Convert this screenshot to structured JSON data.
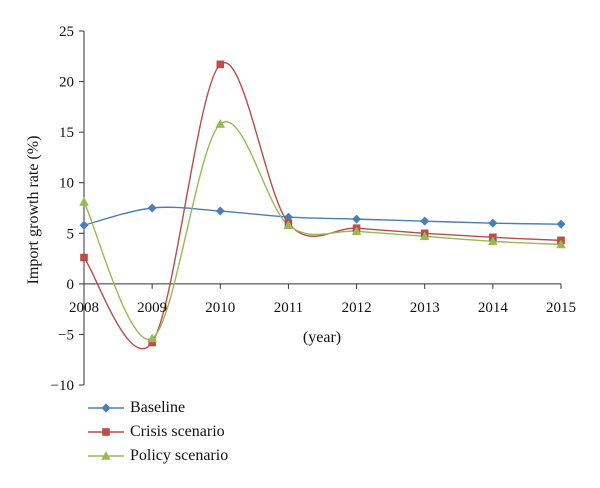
{
  "chart_data": {
    "type": "line",
    "x": [
      2008,
      2009,
      2010,
      2011,
      2012,
      2013,
      2014,
      2015
    ],
    "xlabel": "(year)",
    "ylabel": "Import growth rate (%)",
    "ylim": [
      -10,
      25
    ],
    "yticks": [
      -10,
      -5,
      0,
      5,
      10,
      15,
      20,
      25
    ],
    "grid": false,
    "legend_position": "bottom-left",
    "series": [
      {
        "name": "Baseline",
        "color": "#4a7ebb",
        "marker": "diamond",
        "values": [
          5.8,
          7.5,
          7.2,
          6.6,
          6.4,
          6.2,
          6.0,
          5.9
        ]
      },
      {
        "name": "Crisis scenario",
        "color": "#be4b48",
        "marker": "square",
        "values": [
          2.6,
          -5.8,
          21.7,
          6.0,
          5.5,
          5.0,
          4.6,
          4.3
        ]
      },
      {
        "name": "Policy scenario",
        "color": "#98b954",
        "marker": "triangle",
        "values": [
          8.1,
          -5.4,
          15.8,
          5.8,
          5.2,
          4.7,
          4.2,
          3.9
        ]
      }
    ]
  }
}
